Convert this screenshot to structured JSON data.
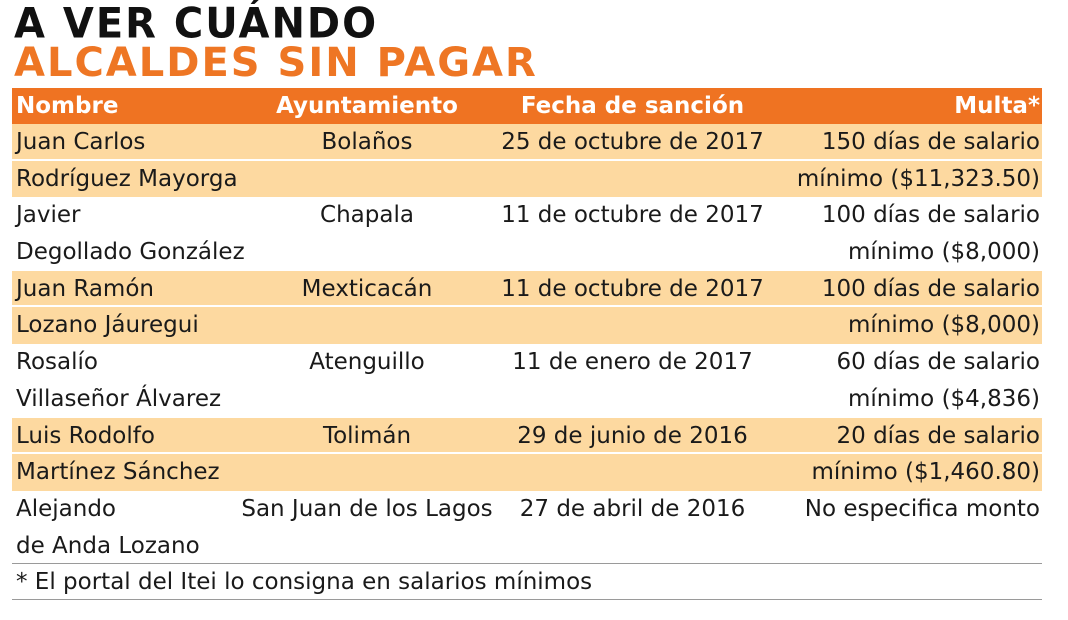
{
  "title": {
    "line1": "A VER CUÁNDO",
    "line2": "ALCALDES SIN PAGAR"
  },
  "colors": {
    "accent_orange": "#ef7322",
    "row_shade": "#fdd9a0",
    "title_dark": "#111111"
  },
  "table": {
    "headers": {
      "nombre": "Nombre",
      "ayuntamiento": "Ayuntamiento",
      "fecha": "Fecha de sanción",
      "multa": "Multa*"
    },
    "rows": [
      {
        "nombre1": "Juan Carlos",
        "nombre2": "Rodríguez Mayorga",
        "ayuntamiento": "Bolaños",
        "fecha": "25 de octubre de 2017",
        "multa1": "150 días de salario",
        "multa2": "mínimo ($11,323.50)"
      },
      {
        "nombre1": "Javier",
        "nombre2": "Degollado González",
        "ayuntamiento": "Chapala",
        "fecha": "11 de octubre de 2017",
        "multa1": "100 días de salario",
        "multa2": "mínimo ($8,000)"
      },
      {
        "nombre1": "Juan Ramón",
        "nombre2": "Lozano Jáuregui",
        "ayuntamiento": "Mexticacán",
        "fecha": "11 de octubre de 2017",
        "multa1": "100 días de salario",
        "multa2": "mínimo ($8,000)"
      },
      {
        "nombre1": "Rosalío",
        "nombre2": "Villaseñor Álvarez",
        "ayuntamiento": "Atenguillo",
        "fecha": "11 de enero de 2017",
        "multa1": "60 días de salario",
        "multa2": "mínimo ($4,836)"
      },
      {
        "nombre1": "Luis Rodolfo",
        "nombre2": "Martínez Sánchez",
        "ayuntamiento": "Tolimán",
        "fecha": "29 de junio de 2016",
        "multa1": "20 días de salario",
        "multa2": "mínimo ($1,460.80)"
      },
      {
        "nombre1": "Alejando",
        "nombre2": "de Anda Lozano",
        "ayuntamiento": "San Juan de los Lagos",
        "fecha": "27 de abril de 2016",
        "multa1": "No especifica monto",
        "multa2": ""
      }
    ]
  },
  "footnote": "* El portal del Itei lo consigna en salarios mínimos"
}
